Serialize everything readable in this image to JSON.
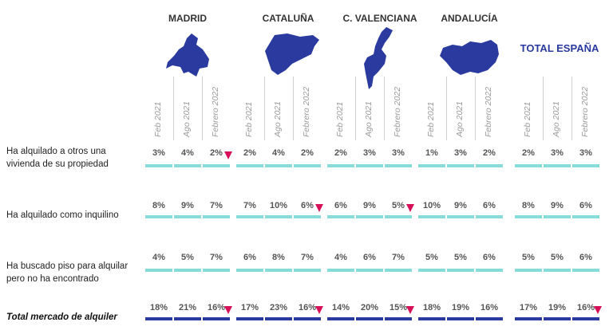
{
  "chart_data": {
    "type": "table",
    "regions": [
      {
        "key": "madrid",
        "name": "MADRID"
      },
      {
        "key": "cataluna",
        "name": "CATALUÑA"
      },
      {
        "key": "cvalenciana",
        "name": "C. VALENCIANA"
      },
      {
        "key": "andalucia",
        "name": "ANDALUCÍA"
      },
      {
        "key": "total",
        "name": "TOTAL ESPAÑA"
      }
    ],
    "periods": [
      "Feb 2021",
      "Ago 2021",
      "Febrero 2022"
    ],
    "rows": [
      {
        "label": "Ha alquilado a otros una vivienda de su propiedad",
        "total": false,
        "values": [
          [
            "3%",
            "4%",
            "2%"
          ],
          [
            "2%",
            "4%",
            "2%"
          ],
          [
            "2%",
            "3%",
            "3%"
          ],
          [
            "1%",
            "3%",
            "2%"
          ],
          [
            "2%",
            "3%",
            "3%"
          ]
        ],
        "decrease": [
          [
            false,
            false,
            true
          ],
          [
            false,
            false,
            false
          ],
          [
            false,
            false,
            false
          ],
          [
            false,
            false,
            false
          ],
          [
            false,
            false,
            false
          ]
        ]
      },
      {
        "label": "Ha alquilado como inquilino",
        "total": false,
        "values": [
          [
            "8%",
            "9%",
            "7%"
          ],
          [
            "7%",
            "10%",
            "6%"
          ],
          [
            "6%",
            "9%",
            "5%"
          ],
          [
            "10%",
            "9%",
            "6%"
          ],
          [
            "8%",
            "9%",
            "6%"
          ]
        ],
        "decrease": [
          [
            false,
            false,
            false
          ],
          [
            false,
            false,
            true
          ],
          [
            false,
            false,
            true
          ],
          [
            false,
            false,
            false
          ],
          [
            false,
            false,
            false
          ]
        ]
      },
      {
        "label": "Ha buscado piso para alquilar pero no ha encontrado",
        "total": false,
        "values": [
          [
            "4%",
            "5%",
            "7%"
          ],
          [
            "6%",
            "8%",
            "7%"
          ],
          [
            "4%",
            "6%",
            "7%"
          ],
          [
            "5%",
            "5%",
            "6%"
          ],
          [
            "5%",
            "5%",
            "6%"
          ]
        ],
        "decrease": [
          [
            false,
            false,
            false
          ],
          [
            false,
            false,
            false
          ],
          [
            false,
            false,
            false
          ],
          [
            false,
            false,
            false
          ],
          [
            false,
            false,
            false
          ]
        ]
      },
      {
        "label": "Total mercado de alquiler",
        "total": true,
        "values": [
          [
            "18%",
            "21%",
            "16%"
          ],
          [
            "17%",
            "23%",
            "16%"
          ],
          [
            "14%",
            "20%",
            "15%"
          ],
          [
            "18%",
            "19%",
            "16%"
          ],
          [
            "17%",
            "19%",
            "16%"
          ]
        ],
        "decrease": [
          [
            false,
            false,
            true
          ],
          [
            false,
            false,
            true
          ],
          [
            false,
            false,
            true
          ],
          [
            false,
            false,
            false
          ],
          [
            false,
            false,
            true
          ]
        ]
      }
    ]
  },
  "colors": {
    "map_fill": "#2a3a9e",
    "total_title": "#2a3a9e",
    "bar_light": "#85dcd9",
    "bar_dark": "#2a3a9e",
    "decrease_marker": "#d8105a",
    "period_text": "#999999",
    "value_text": "#555555"
  },
  "icons": {
    "region_maps": [
      "madrid-map",
      "cataluna-map",
      "valenciana-map",
      "andalucia-map"
    ],
    "decrease_marker": "down-triangle"
  }
}
